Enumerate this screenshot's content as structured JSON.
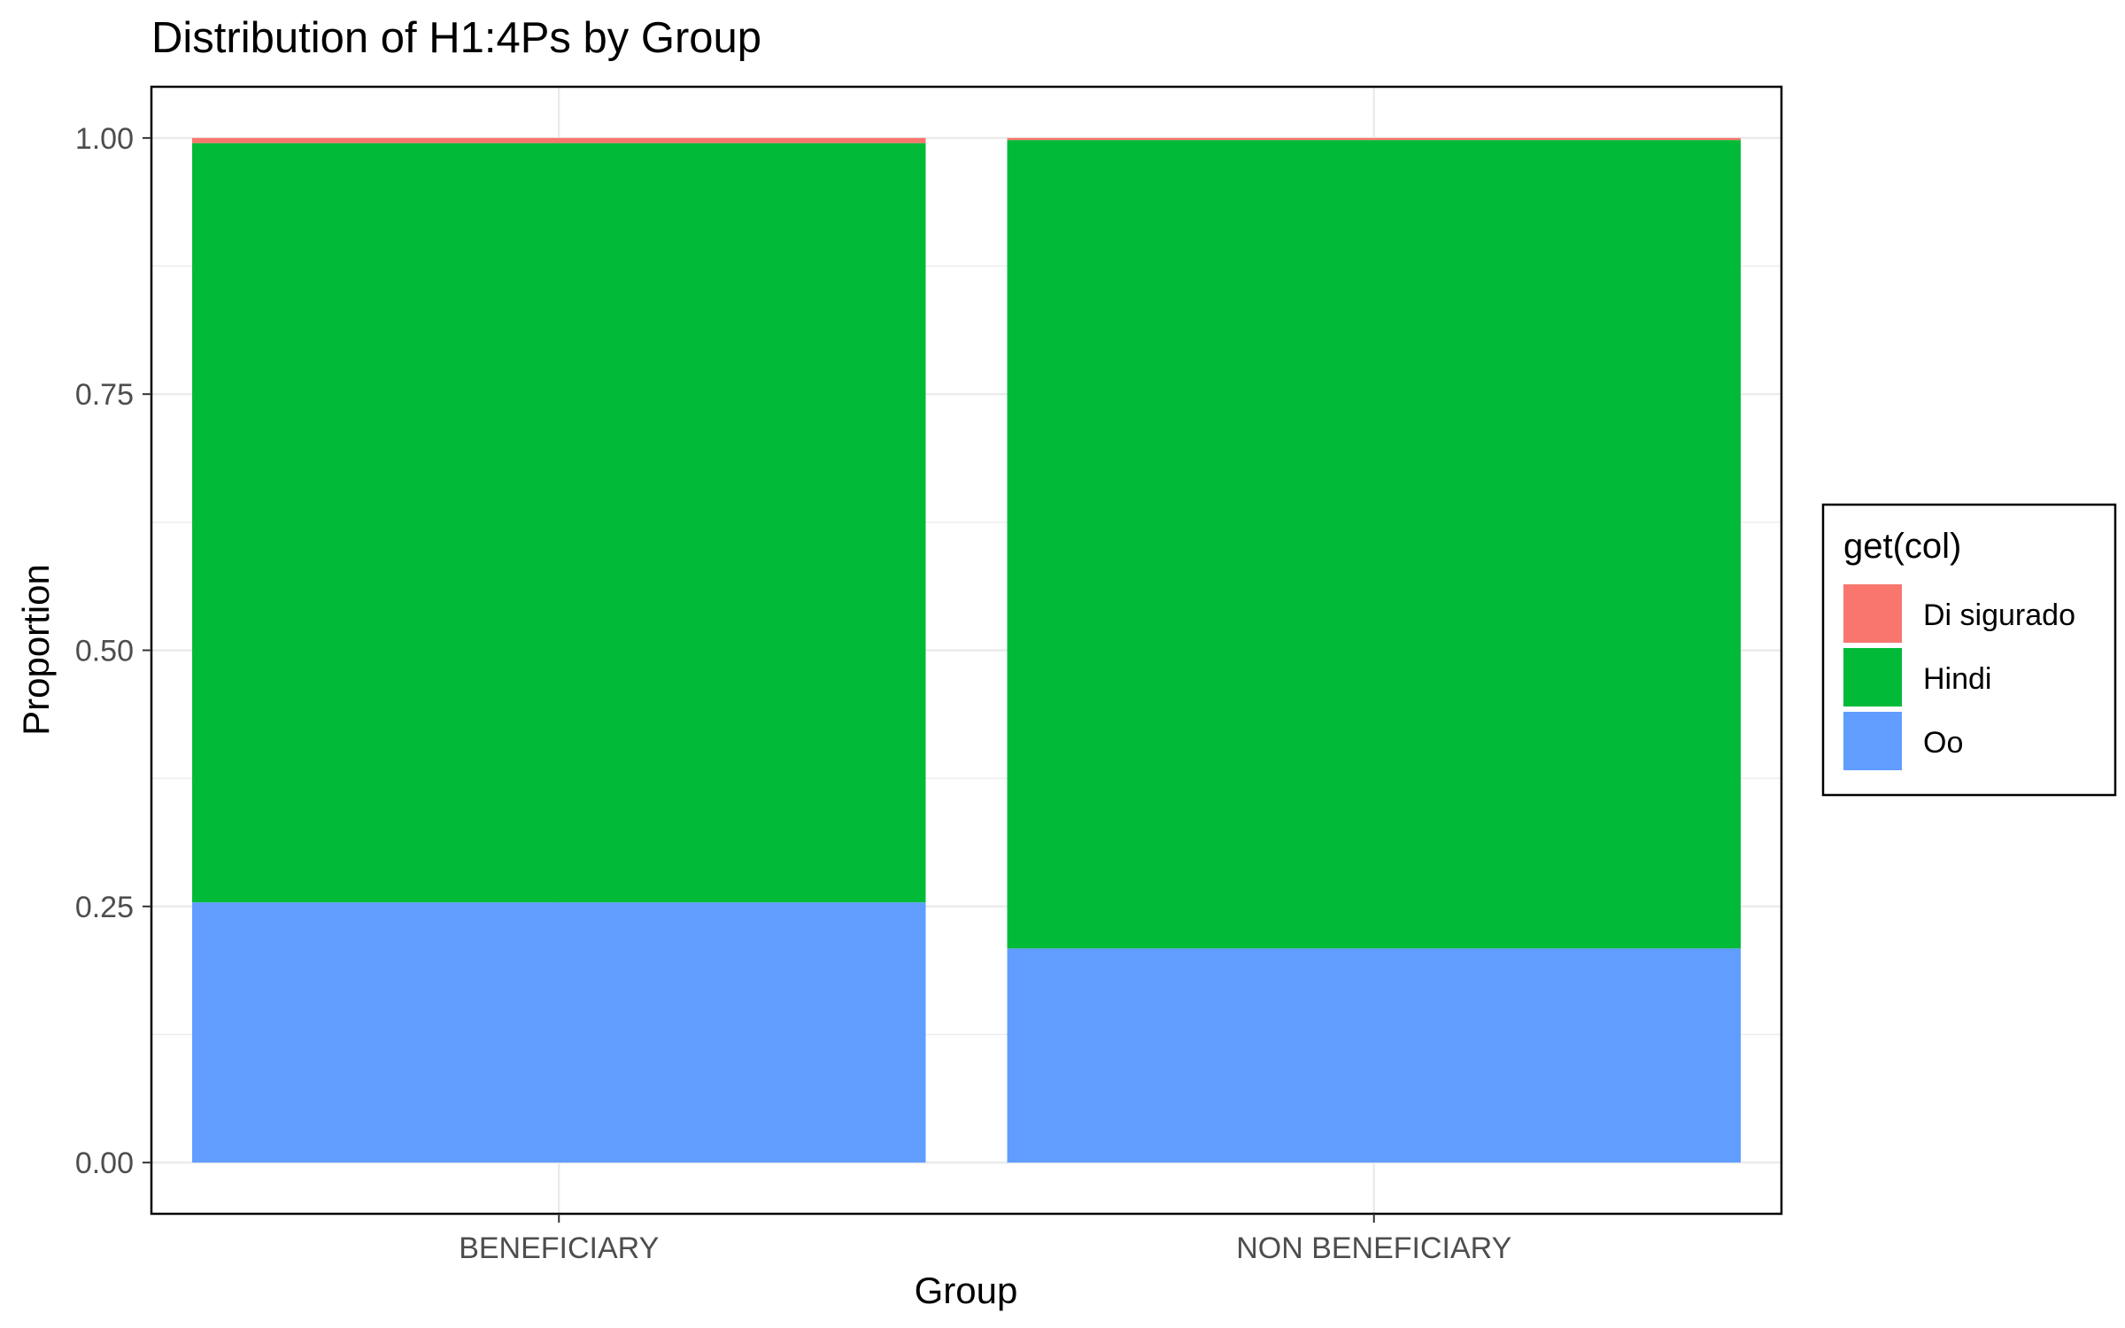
{
  "chart_data": {
    "type": "bar",
    "stacked": true,
    "title": "Distribution of H1:4Ps by Group",
    "xlabel": "Group",
    "ylabel": "Proportion",
    "categories": [
      "BENEFICIARY",
      "NON BENEFICIARY"
    ],
    "series": [
      {
        "name": "Oo",
        "color": "#619CFF",
        "values": [
          0.254,
          0.209
        ]
      },
      {
        "name": "Hindi",
        "color": "#00BA38",
        "values": [
          0.741,
          0.789
        ]
      },
      {
        "name": "Di sigurado",
        "color": "#F8766D",
        "values": [
          0.005,
          0.002
        ]
      }
    ],
    "ylim": [
      -0.05,
      1.05
    ],
    "yticks": [
      0.0,
      0.25,
      0.5,
      0.75,
      1.0
    ],
    "ytick_labels": [
      "0.00",
      "0.25",
      "0.50",
      "0.75",
      "1.00"
    ],
    "legend": {
      "title": "get(col)",
      "position": "right",
      "entries": [
        "Di sigurado",
        "Hindi",
        "Oo"
      ]
    },
    "grid": true
  }
}
